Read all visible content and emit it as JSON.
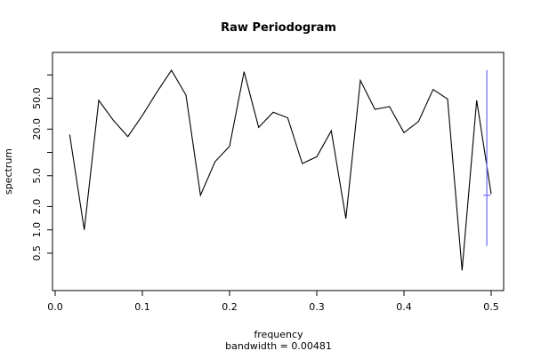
{
  "chart_data": {
    "type": "line",
    "title": "Raw Periodogram",
    "xlabel": "frequency",
    "sublabel": "bandwidth = 0.00481",
    "ylabel": "spectrum",
    "y_scale": "log",
    "xlim": [
      0,
      0.5
    ],
    "ylim": [
      0.22,
      150
    ],
    "x_ticks": [
      {
        "value": 0.0,
        "label": "0.0"
      },
      {
        "value": 0.1,
        "label": "0.1"
      },
      {
        "value": 0.2,
        "label": "0.2"
      },
      {
        "value": 0.3,
        "label": "0.3"
      },
      {
        "value": 0.4,
        "label": "0.4"
      },
      {
        "value": 0.5,
        "label": "0.5"
      }
    ],
    "y_ticks": [
      {
        "value": 0.5,
        "label": "0.5"
      },
      {
        "value": 1.0,
        "label": "1.0"
      },
      {
        "value": 2.0,
        "label": "2.0"
      },
      {
        "value": 5.0,
        "label": "5.0"
      },
      {
        "value": 20.0,
        "label": "20.0"
      },
      {
        "value": 50.0,
        "label": "50.0"
      }
    ],
    "y_minor_ticks": [
      10,
      100
    ],
    "series": [
      {
        "color": "#000000",
        "x": [
          0.01667,
          0.03333,
          0.05,
          0.06667,
          0.08333,
          0.1,
          0.11667,
          0.13333,
          0.15,
          0.16667,
          0.18333,
          0.2,
          0.21667,
          0.23333,
          0.25,
          0.26667,
          0.28333,
          0.3,
          0.31667,
          0.33333,
          0.35,
          0.36667,
          0.38333,
          0.4,
          0.41667,
          0.43333,
          0.45,
          0.46667,
          0.48333,
          0.5
        ],
        "y": [
          17,
          1.0,
          47,
          26,
          16,
          30,
          60,
          115,
          55,
          2.8,
          7.6,
          12,
          110,
          21,
          33,
          28,
          7.2,
          8.8,
          19,
          1.4,
          85,
          36,
          39,
          18,
          25,
          65,
          49,
          0.3,
          47,
          2.9
        ]
      }
    ],
    "ci_bar": {
      "color": "#6a6aff",
      "x": 0.495,
      "center": 2.8,
      "lower": 0.62,
      "upper": 115
    }
  }
}
